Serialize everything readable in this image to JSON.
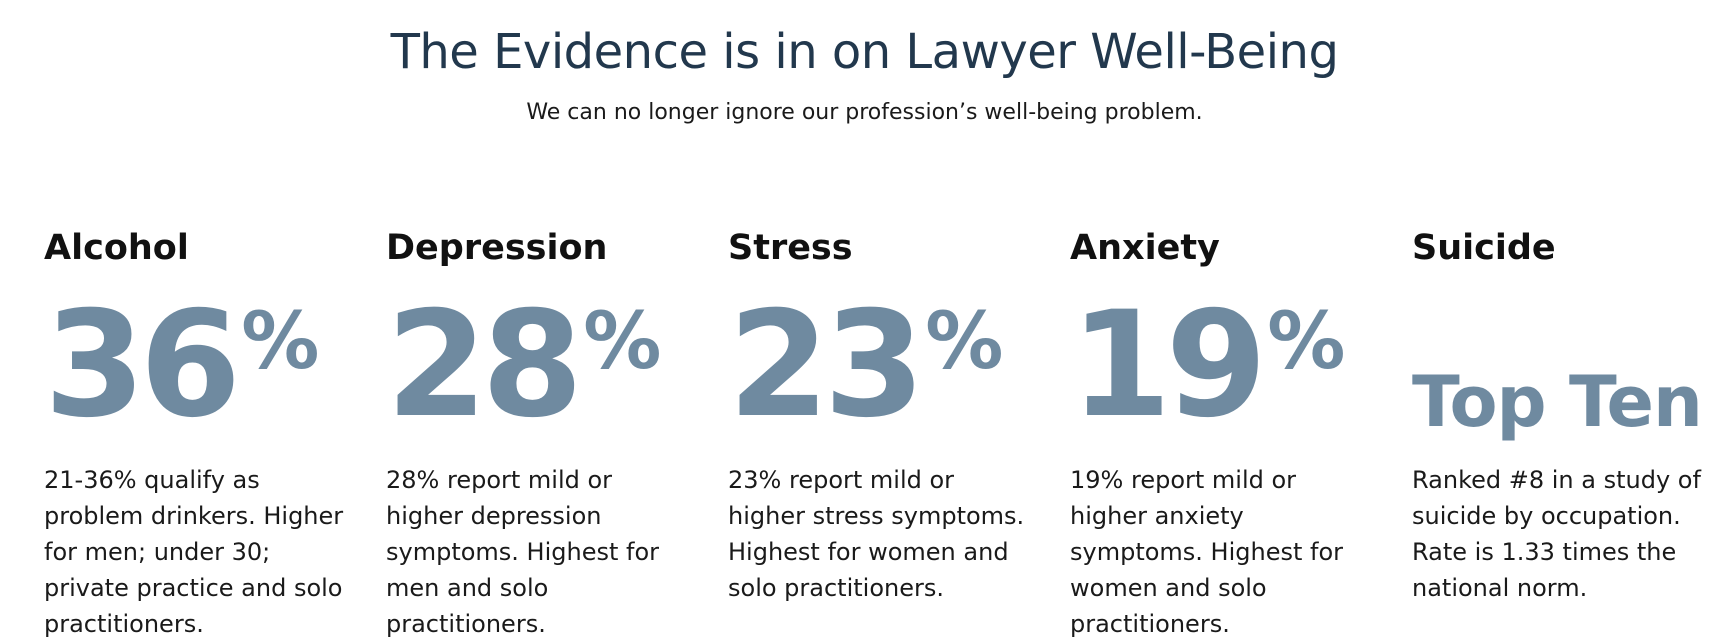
{
  "header": {
    "title": "The Evidence is in on Lawyer Well-Being",
    "subtitle": "We can no longer ignore our profession’s well-being problem."
  },
  "colors": {
    "title": "#22384d",
    "stat": "#6f8aa0",
    "text": "#1a1a1a"
  },
  "stats": [
    {
      "label": "Alcohol",
      "number": "36",
      "percent": "%",
      "description": "21-36% qualify as problem drinkers. Higher for men; under 30; private practice and solo practitioners."
    },
    {
      "label": "Depression",
      "number": "28",
      "percent": "%",
      "description": "28% report mild or higher depression symptoms. Highest for men and solo practitioners."
    },
    {
      "label": "Stress",
      "number": "23",
      "percent": "%",
      "description": "23% report mild or higher stress symptoms. Highest for women and solo practitioners."
    },
    {
      "label": "Anxiety",
      "number": "19",
      "percent": "%",
      "description": "19% report mild or higher anxiety symptoms. Highest for women and solo practitioners."
    },
    {
      "label": "Suicide",
      "big_text": "Top Ten",
      "description": "Ranked #8 in a study of suicide by occupation. Rate is 1.33 times the national norm."
    }
  ]
}
